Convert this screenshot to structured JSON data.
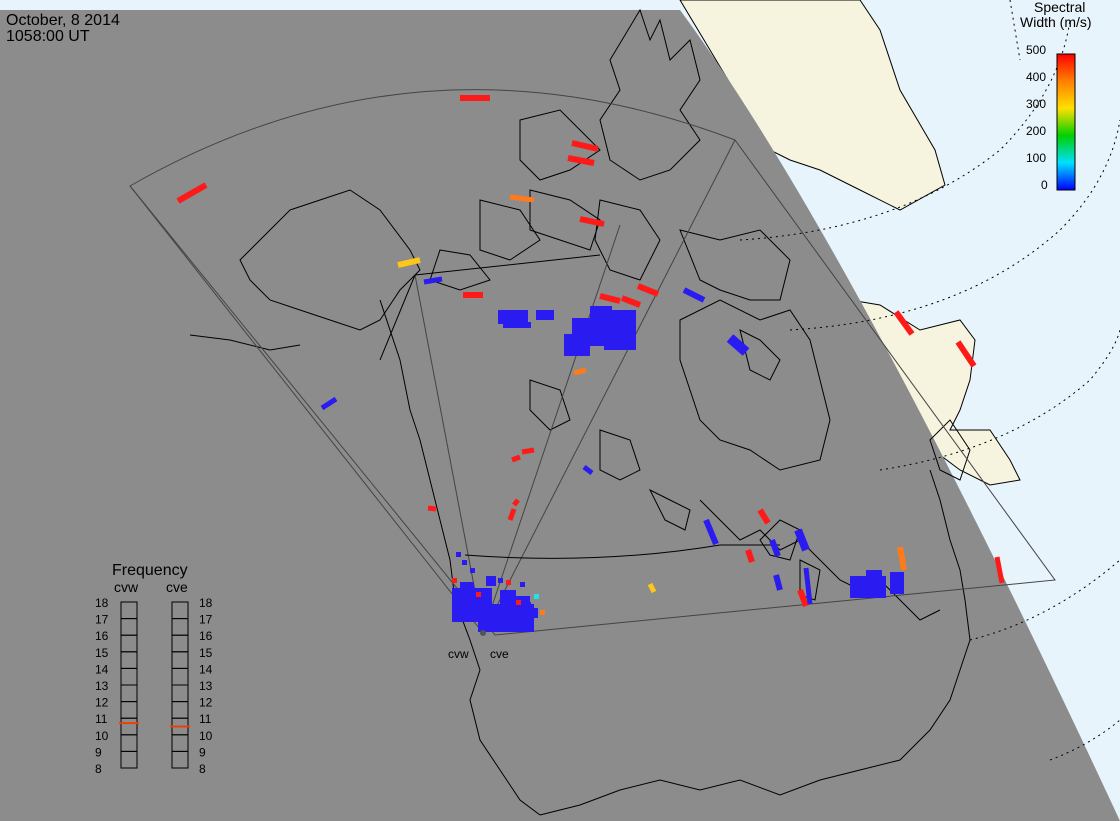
{
  "header": {
    "date": "October, 8 2014",
    "time": "1058:00 UT"
  },
  "legend": {
    "title_line1": "Spectral",
    "title_line2": "Width (m/s)",
    "ticks": [
      "500",
      "400",
      "300",
      "200",
      "100",
      "0"
    ]
  },
  "radars": {
    "west_label": "cvw",
    "east_label": "cve"
  },
  "frequency": {
    "title": "Frequency",
    "left_header": "cvw",
    "right_header": "cve",
    "scale": [
      "18",
      "17",
      "16",
      "15",
      "14",
      "13",
      "12",
      "11",
      "10",
      "9",
      "8"
    ],
    "cvw_value_mhz": 10.7,
    "cve_value_mhz": 10.5
  },
  "colors": {
    "ocean_gray": "#8c8c8c",
    "daylight_blue": "#e8f4fb",
    "daylight_land": "#f6f3df",
    "scatter_blue": "#2a1cf0",
    "scatter_red": "#ff1a1a",
    "scatter_orange": "#ff7a1a",
    "scatter_yellow": "#ffc61a",
    "scatter_cyan": "#20e0e8"
  }
}
